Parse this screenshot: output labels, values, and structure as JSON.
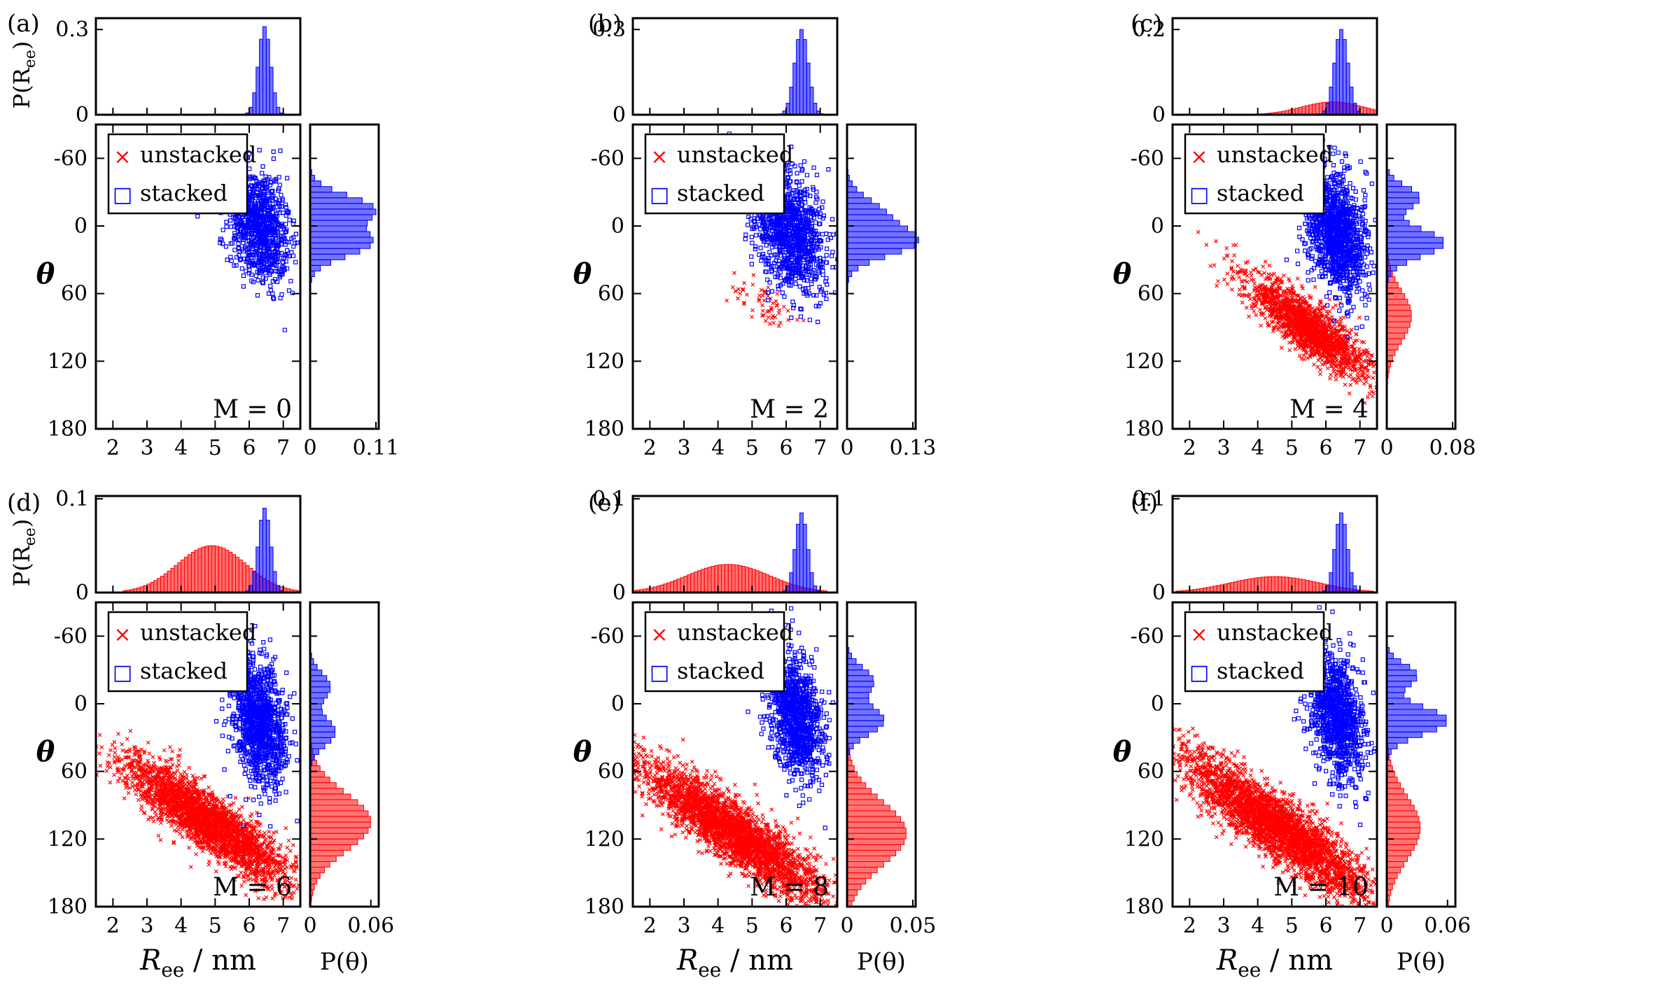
{
  "figure": {
    "description_labels": {
      "x_axis_label_main": "R",
      "x_axis_label_sub": "ee",
      "x_axis_unit": "  / nm",
      "y_axis_label": "θ",
      "top_hist_ylabel_main": "P(R",
      "top_hist_ylabel_sub": "ee",
      "top_hist_ylabel_end": ")",
      "side_hist_xlabel": "P(θ)"
    },
    "legend": {
      "unstacked_label": "unstacked",
      "stacked_label": "stacked",
      "unstacked_marker": "×",
      "stacked_marker": "□"
    },
    "colors": {
      "unstacked": "#ff0000",
      "stacked": "#0000ff",
      "axis": "#000000"
    }
  },
  "chart_data": [
    {
      "panel": "(a)",
      "type": "scatter",
      "annotation": "M = 0",
      "xlim": [
        1.5,
        7.5
      ],
      "ylim": [
        180,
        -90
      ],
      "x_ticks": [
        "2",
        "3",
        "4",
        "5",
        "6",
        "7"
      ],
      "y_ticks": [
        "-60",
        "0",
        "60",
        "120",
        "180"
      ],
      "top_hist_ymax": 0.33,
      "top_hist_ticks": [
        "0",
        "0.3"
      ],
      "side_hist_xmax": 0.11,
      "side_hist_ticks": [
        "0",
        "0.11"
      ],
      "series": [
        {
          "name": "stacked",
          "clusters": [
            {
              "x": 6.3,
              "y": 0,
              "sx": 0.45,
              "sy": 25,
              "n": 900,
              "corr": 0.2
            }
          ]
        }
      ],
      "top_hist": {
        "stacked": {
          "center": 6.45,
          "sd": 0.18,
          "peak": 0.31
        }
      },
      "side_hist": {
        "stacked": {
          "peaks": [
            {
              "c": -15,
              "sd": 12,
              "h": 0.105
            },
            {
              "c": 15,
              "sd": 12,
              "h": 0.1
            }
          ]
        }
      }
    },
    {
      "panel": "(b)",
      "type": "scatter",
      "annotation": "M = 2",
      "xlim": [
        1.5,
        7.5
      ],
      "ylim": [
        180,
        -90
      ],
      "x_ticks": [
        "2",
        "3",
        "4",
        "5",
        "6",
        "7"
      ],
      "y_ticks": [
        "-60",
        "0",
        "60",
        "120",
        "180"
      ],
      "top_hist_ymax": 0.33,
      "top_hist_ticks": [
        "0",
        "0.3"
      ],
      "side_hist_xmax": 0.13,
      "side_hist_ticks": [
        "0",
        "0.13"
      ],
      "series": [
        {
          "name": "stacked",
          "clusters": [
            {
              "x": 6.1,
              "y": 5,
              "sx": 0.55,
              "sy": 28,
              "n": 1100,
              "corr": 0.35
            }
          ]
        },
        {
          "name": "unstacked",
          "clusters": [
            {
              "x": 5.4,
              "y": 70,
              "sx": 0.5,
              "sy": 12,
              "n": 60,
              "corr": 0.6
            }
          ]
        }
      ],
      "top_hist": {
        "stacked": {
          "center": 6.45,
          "sd": 0.2,
          "peak": 0.3
        }
      },
      "side_hist": {
        "stacked": {
          "peaks": [
            {
              "c": -10,
              "sd": 14,
              "h": 0.07
            },
            {
              "c": 15,
              "sd": 12,
              "h": 0.125
            }
          ]
        }
      }
    },
    {
      "panel": "(c)",
      "type": "scatter",
      "annotation": "M = 4",
      "xlim": [
        1.5,
        7.5
      ],
      "ylim": [
        180,
        -90
      ],
      "x_ticks": [
        "2",
        "3",
        "4",
        "5",
        "6",
        "7"
      ],
      "y_ticks": [
        "-60",
        "0",
        "60",
        "120",
        "180"
      ],
      "top_hist_ymax": 0.22,
      "top_hist_ticks": [
        "0",
        "0.2"
      ],
      "side_hist_xmax": 0.08,
      "side_hist_ticks": [
        "0",
        "0.08"
      ],
      "series": [
        {
          "name": "stacked",
          "clusters": [
            {
              "x": 6.3,
              "y": 5,
              "sx": 0.45,
              "sy": 28,
              "n": 1200,
              "corr": 0.35
            }
          ]
        },
        {
          "name": "unstacked",
          "clusters": [
            {
              "x": 5.5,
              "y": 90,
              "sx": 0.9,
              "sy": 22,
              "n": 1800,
              "corr": 0.85
            }
          ]
        }
      ],
      "top_hist": {
        "stacked": {
          "center": 6.45,
          "sd": 0.2,
          "peak": 0.2
        },
        "unstacked": {
          "center": 6.2,
          "sd": 0.9,
          "peak": 0.03
        }
      },
      "side_hist": {
        "stacked": {
          "peaks": [
            {
              "c": -25,
              "sd": 10,
              "h": 0.04
            },
            {
              "c": 15,
              "sd": 12,
              "h": 0.07
            }
          ]
        },
        "unstacked": {
          "peaks": [
            {
              "c": 80,
              "sd": 22,
              "h": 0.03
            }
          ]
        }
      }
    },
    {
      "panel": "(d)",
      "type": "scatter",
      "annotation": "M = 6",
      "xlim": [
        1.5,
        7.5
      ],
      "ylim": [
        180,
        -90
      ],
      "x_ticks": [
        "2",
        "3",
        "4",
        "5",
        "6",
        "7"
      ],
      "y_ticks": [
        "-60",
        "0",
        "60",
        "120",
        "180"
      ],
      "top_hist_ymax": 0.1,
      "top_hist_ticks": [
        "0",
        "0.1"
      ],
      "side_hist_xmax": 0.065,
      "side_hist_ticks": [
        "0",
        "0.06"
      ],
      "series": [
        {
          "name": "stacked",
          "clusters": [
            {
              "x": 6.3,
              "y": 15,
              "sx": 0.4,
              "sy": 28,
              "n": 1100,
              "corr": 0.3
            }
          ]
        },
        {
          "name": "unstacked",
          "clusters": [
            {
              "x": 4.8,
              "y": 105,
              "sx": 1.2,
              "sy": 28,
              "n": 2800,
              "corr": 0.88
            }
          ]
        }
      ],
      "top_hist": {
        "stacked": {
          "center": 6.45,
          "sd": 0.18,
          "peak": 0.09
        },
        "unstacked": {
          "center": 4.9,
          "sd": 1.0,
          "peak": 0.05
        }
      },
      "side_hist": {
        "stacked": {
          "peaks": [
            {
              "c": -15,
              "sd": 12,
              "h": 0.02
            },
            {
              "c": 25,
              "sd": 12,
              "h": 0.025
            }
          ]
        },
        "unstacked": {
          "peaks": [
            {
              "c": 105,
              "sd": 25,
              "h": 0.06
            }
          ]
        }
      }
    },
    {
      "panel": "(e)",
      "type": "scatter",
      "annotation": "M = 8",
      "xlim": [
        1.5,
        7.5
      ],
      "ylim": [
        180,
        -90
      ],
      "x_ticks": [
        "2",
        "3",
        "4",
        "5",
        "6",
        "7"
      ],
      "y_ticks": [
        "-60",
        "0",
        "60",
        "120",
        "180"
      ],
      "top_hist_ymax": 0.1,
      "top_hist_ticks": [
        "0",
        "0.1"
      ],
      "side_hist_xmax": 0.05,
      "side_hist_ticks": [
        "0",
        "0.05"
      ],
      "series": [
        {
          "name": "stacked",
          "clusters": [
            {
              "x": 6.3,
              "y": 10,
              "sx": 0.4,
              "sy": 28,
              "n": 1000,
              "corr": 0.3
            }
          ]
        },
        {
          "name": "unstacked",
          "clusters": [
            {
              "x": 4.5,
              "y": 115,
              "sx": 1.4,
              "sy": 32,
              "n": 3200,
              "corr": 0.9
            }
          ]
        }
      ],
      "top_hist": {
        "stacked": {
          "center": 6.45,
          "sd": 0.18,
          "peak": 0.085
        },
        "unstacked": {
          "center": 4.3,
          "sd": 1.2,
          "peak": 0.03
        }
      },
      "side_hist": {
        "stacked": {
          "peaks": [
            {
              "c": -20,
              "sd": 12,
              "h": 0.02
            },
            {
              "c": 15,
              "sd": 12,
              "h": 0.028
            }
          ]
        },
        "unstacked": {
          "peaks": [
            {
              "c": 115,
              "sd": 28,
              "h": 0.045
            }
          ]
        }
      }
    },
    {
      "panel": "(f)",
      "type": "scatter",
      "annotation": "M = 10",
      "xlim": [
        1.5,
        7.5
      ],
      "ylim": [
        180,
        -90
      ],
      "x_ticks": [
        "2",
        "3",
        "4",
        "5",
        "6",
        "7"
      ],
      "y_ticks": [
        "-60",
        "0",
        "60",
        "120",
        "180"
      ],
      "top_hist_ymax": 0.1,
      "top_hist_ticks": [
        "0",
        "0.1"
      ],
      "side_hist_xmax": 0.065,
      "side_hist_ticks": [
        "0",
        "0.06"
      ],
      "series": [
        {
          "name": "stacked",
          "clusters": [
            {
              "x": 6.3,
              "y": 10,
              "sx": 0.4,
              "sy": 30,
              "n": 1000,
              "corr": 0.3
            }
          ]
        },
        {
          "name": "unstacked",
          "clusters": [
            {
              "x": 4.6,
              "y": 110,
              "sx": 1.4,
              "sy": 33,
              "n": 3200,
              "corr": 0.9
            }
          ]
        }
      ],
      "top_hist": {
        "stacked": {
          "center": 6.45,
          "sd": 0.18,
          "peak": 0.085
        },
        "unstacked": {
          "center": 4.5,
          "sd": 1.3,
          "peak": 0.017
        }
      },
      "side_hist": {
        "stacked": {
          "peaks": [
            {
              "c": -25,
              "sd": 10,
              "h": 0.03
            },
            {
              "c": 15,
              "sd": 12,
              "h": 0.06
            }
          ]
        },
        "unstacked": {
          "peaks": [
            {
              "c": 110,
              "sd": 28,
              "h": 0.033
            }
          ]
        }
      }
    }
  ]
}
